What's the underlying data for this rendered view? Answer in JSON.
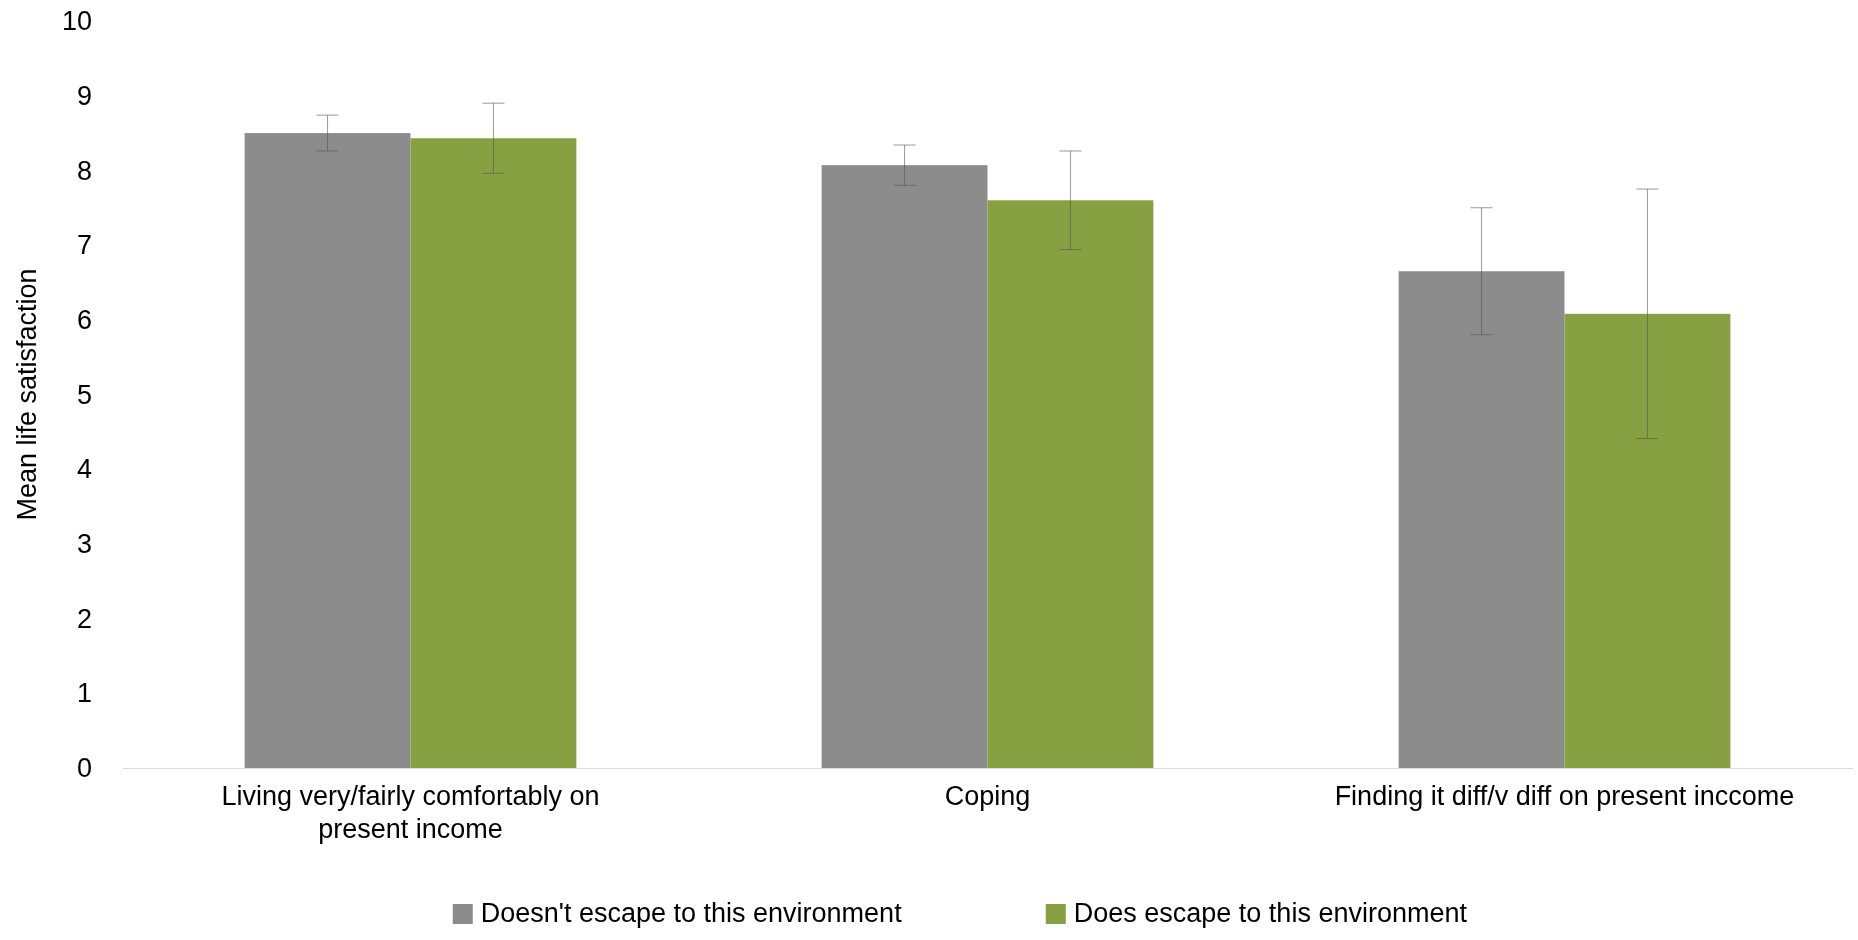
{
  "chart_data": {
    "type": "bar",
    "ylabel": "Mean life satisfaction",
    "categories": [
      "Living very/fairly comfortably on present income",
      "Coping",
      "Finding it diff/v diff on present inccome"
    ],
    "series": [
      {
        "name": "Doesn't escape to this environment",
        "color": "#8c8c8c",
        "values": [
          8.5,
          8.07,
          6.65
        ],
        "errors": [
          0.24,
          0.27,
          0.85
        ]
      },
      {
        "name": "Does escape to this environment",
        "color": "#86a042",
        "values": [
          8.43,
          7.6,
          6.08
        ],
        "errors": [
          0.47,
          0.66,
          1.67
        ]
      }
    ],
    "ylim": [
      0,
      10
    ],
    "yticks": [
      0,
      1,
      2,
      3,
      4,
      5,
      6,
      7,
      8,
      9,
      10
    ],
    "grid": false,
    "legend": "bottom"
  }
}
